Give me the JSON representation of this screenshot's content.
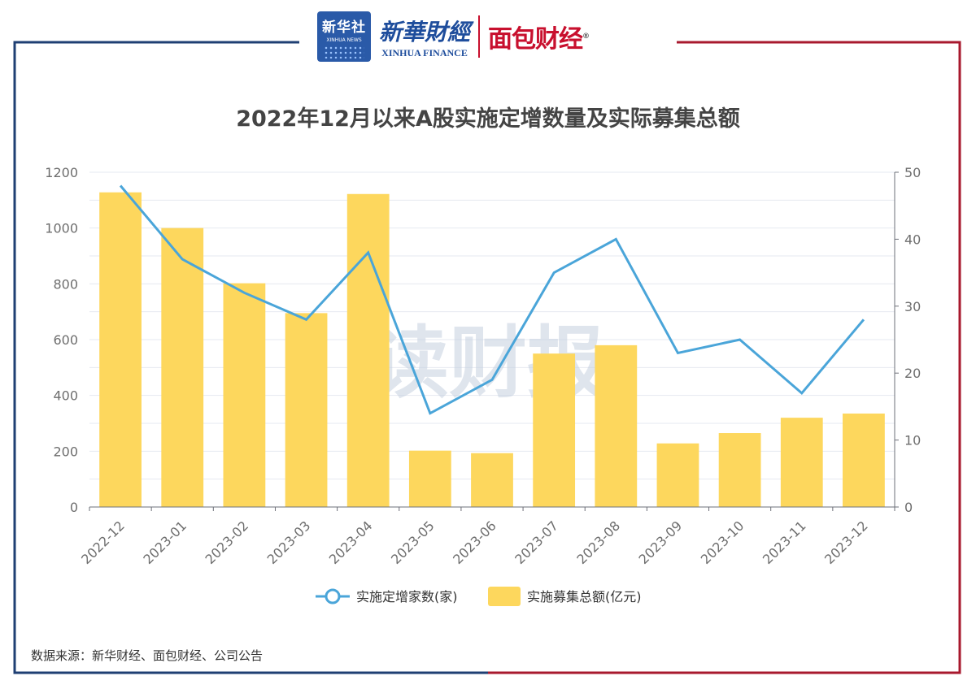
{
  "header": {
    "logo_xinhua": "新华社",
    "logo_xinhua_sub": "XINHUA NEWS",
    "logo_finance_cn": "新華財經",
    "logo_finance_en": "XINHUA FINANCE",
    "logo_mianbao": "面包财经",
    "registered_mark": "®"
  },
  "colors": {
    "frame_left": "#1f3f73",
    "frame_right": "#a8192e",
    "bar": "#fdd75d",
    "line": "#4aa5d9",
    "axis_text": "#6e6e6e",
    "grid": "#e6e9f0",
    "watermark": "#c5d0e0"
  },
  "watermark": "读财报",
  "source_text": "数据来源：新华财经、面包财经、公司公告",
  "chart_data": {
    "type": "bar+line",
    "title": "2022年12月以来A股实施定增数量及实际募集总额",
    "categories": [
      "2022-12",
      "2023-01",
      "2023-02",
      "2023-03",
      "2023-04",
      "2023-05",
      "2023-06",
      "2023-07",
      "2023-08",
      "2023-09",
      "2023-10",
      "2023-11",
      "2023-12"
    ],
    "left_axis": {
      "min": 0,
      "max": 1200,
      "ticks": [
        0,
        200,
        400,
        600,
        800,
        1000,
        1200
      ]
    },
    "right_axis": {
      "min": 0,
      "max": 50,
      "ticks": [
        0,
        10,
        20,
        30,
        40,
        50
      ]
    },
    "series": [
      {
        "name": "实施定增家数(家)",
        "type": "line",
        "axis": "right",
        "values": [
          48,
          37,
          32,
          28,
          38,
          14,
          19,
          35,
          40,
          23,
          25,
          17,
          28
        ]
      },
      {
        "name": "实施募集总额(亿元)",
        "type": "bar",
        "axis": "left",
        "values": [
          1128,
          1000,
          802,
          695,
          1122,
          202,
          193,
          550,
          580,
          228,
          265,
          320,
          335
        ]
      }
    ],
    "legend_position": "bottom"
  }
}
